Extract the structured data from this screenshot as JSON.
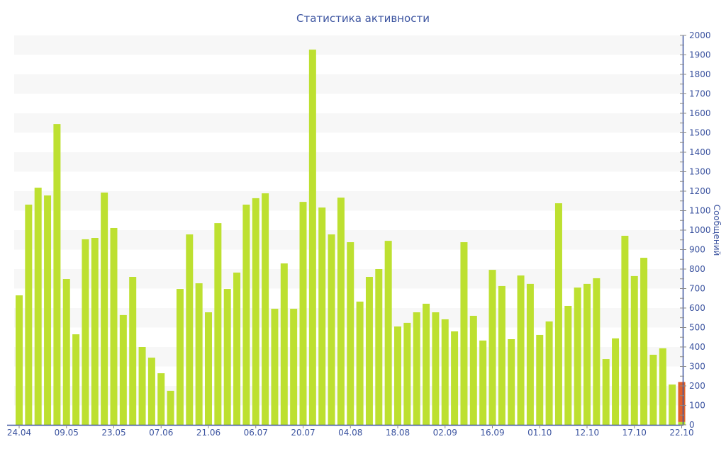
{
  "chart_data": {
    "type": "bar",
    "title": "Статистика активности",
    "ylabel": "Сообщений",
    "xlabel": "",
    "ylim": [
      0,
      2000
    ],
    "ytick_step": 100,
    "grid": "alternating horizontal bands every 100",
    "y_axis_position": "right",
    "colors": {
      "primary": "#bde030",
      "secondary": "#e0622a",
      "axis": "#3c54a0",
      "band": "#f7f7f7"
    },
    "x_tick_labels": [
      "24.04",
      "09.05",
      "23.05",
      "07.06",
      "21.06",
      "06.07",
      "20.07",
      "04.08",
      "18.08",
      "02.09",
      "16.09",
      "01.10",
      "12.10",
      "17.10",
      "22.10"
    ],
    "x_tick_every": 5,
    "values": [
      665,
      1131,
      1218,
      1178,
      1545,
      749,
      465,
      953,
      960,
      1193,
      1011,
      564,
      760,
      400,
      345,
      265,
      175,
      698,
      978,
      727,
      578,
      1036,
      698,
      782,
      1131,
      1164,
      1189,
      596,
      829,
      596,
      1145,
      1927,
      1116,
      978,
      1167,
      938,
      633,
      760,
      800,
      945,
      505,
      524,
      578,
      622,
      578,
      542,
      480,
      938,
      560,
      433,
      796,
      713,
      440,
      767,
      724,
      462,
      531,
      1138,
      611,
      705,
      724,
      753,
      338,
      444,
      971,
      764,
      858,
      360,
      393,
      207,
      15
    ],
    "secondary_values": [
      0,
      0,
      0,
      0,
      0,
      0,
      0,
      0,
      0,
      0,
      0,
      0,
      0,
      0,
      0,
      0,
      0,
      0,
      0,
      0,
      0,
      0,
      0,
      0,
      0,
      0,
      0,
      0,
      0,
      0,
      0,
      0,
      0,
      0,
      0,
      0,
      0,
      0,
      0,
      0,
      0,
      0,
      0,
      0,
      0,
      0,
      0,
      0,
      0,
      0,
      0,
      0,
      0,
      0,
      0,
      0,
      0,
      0,
      0,
      0,
      0,
      0,
      0,
      0,
      0,
      0,
      0,
      0,
      0,
      0,
      205
    ]
  }
}
